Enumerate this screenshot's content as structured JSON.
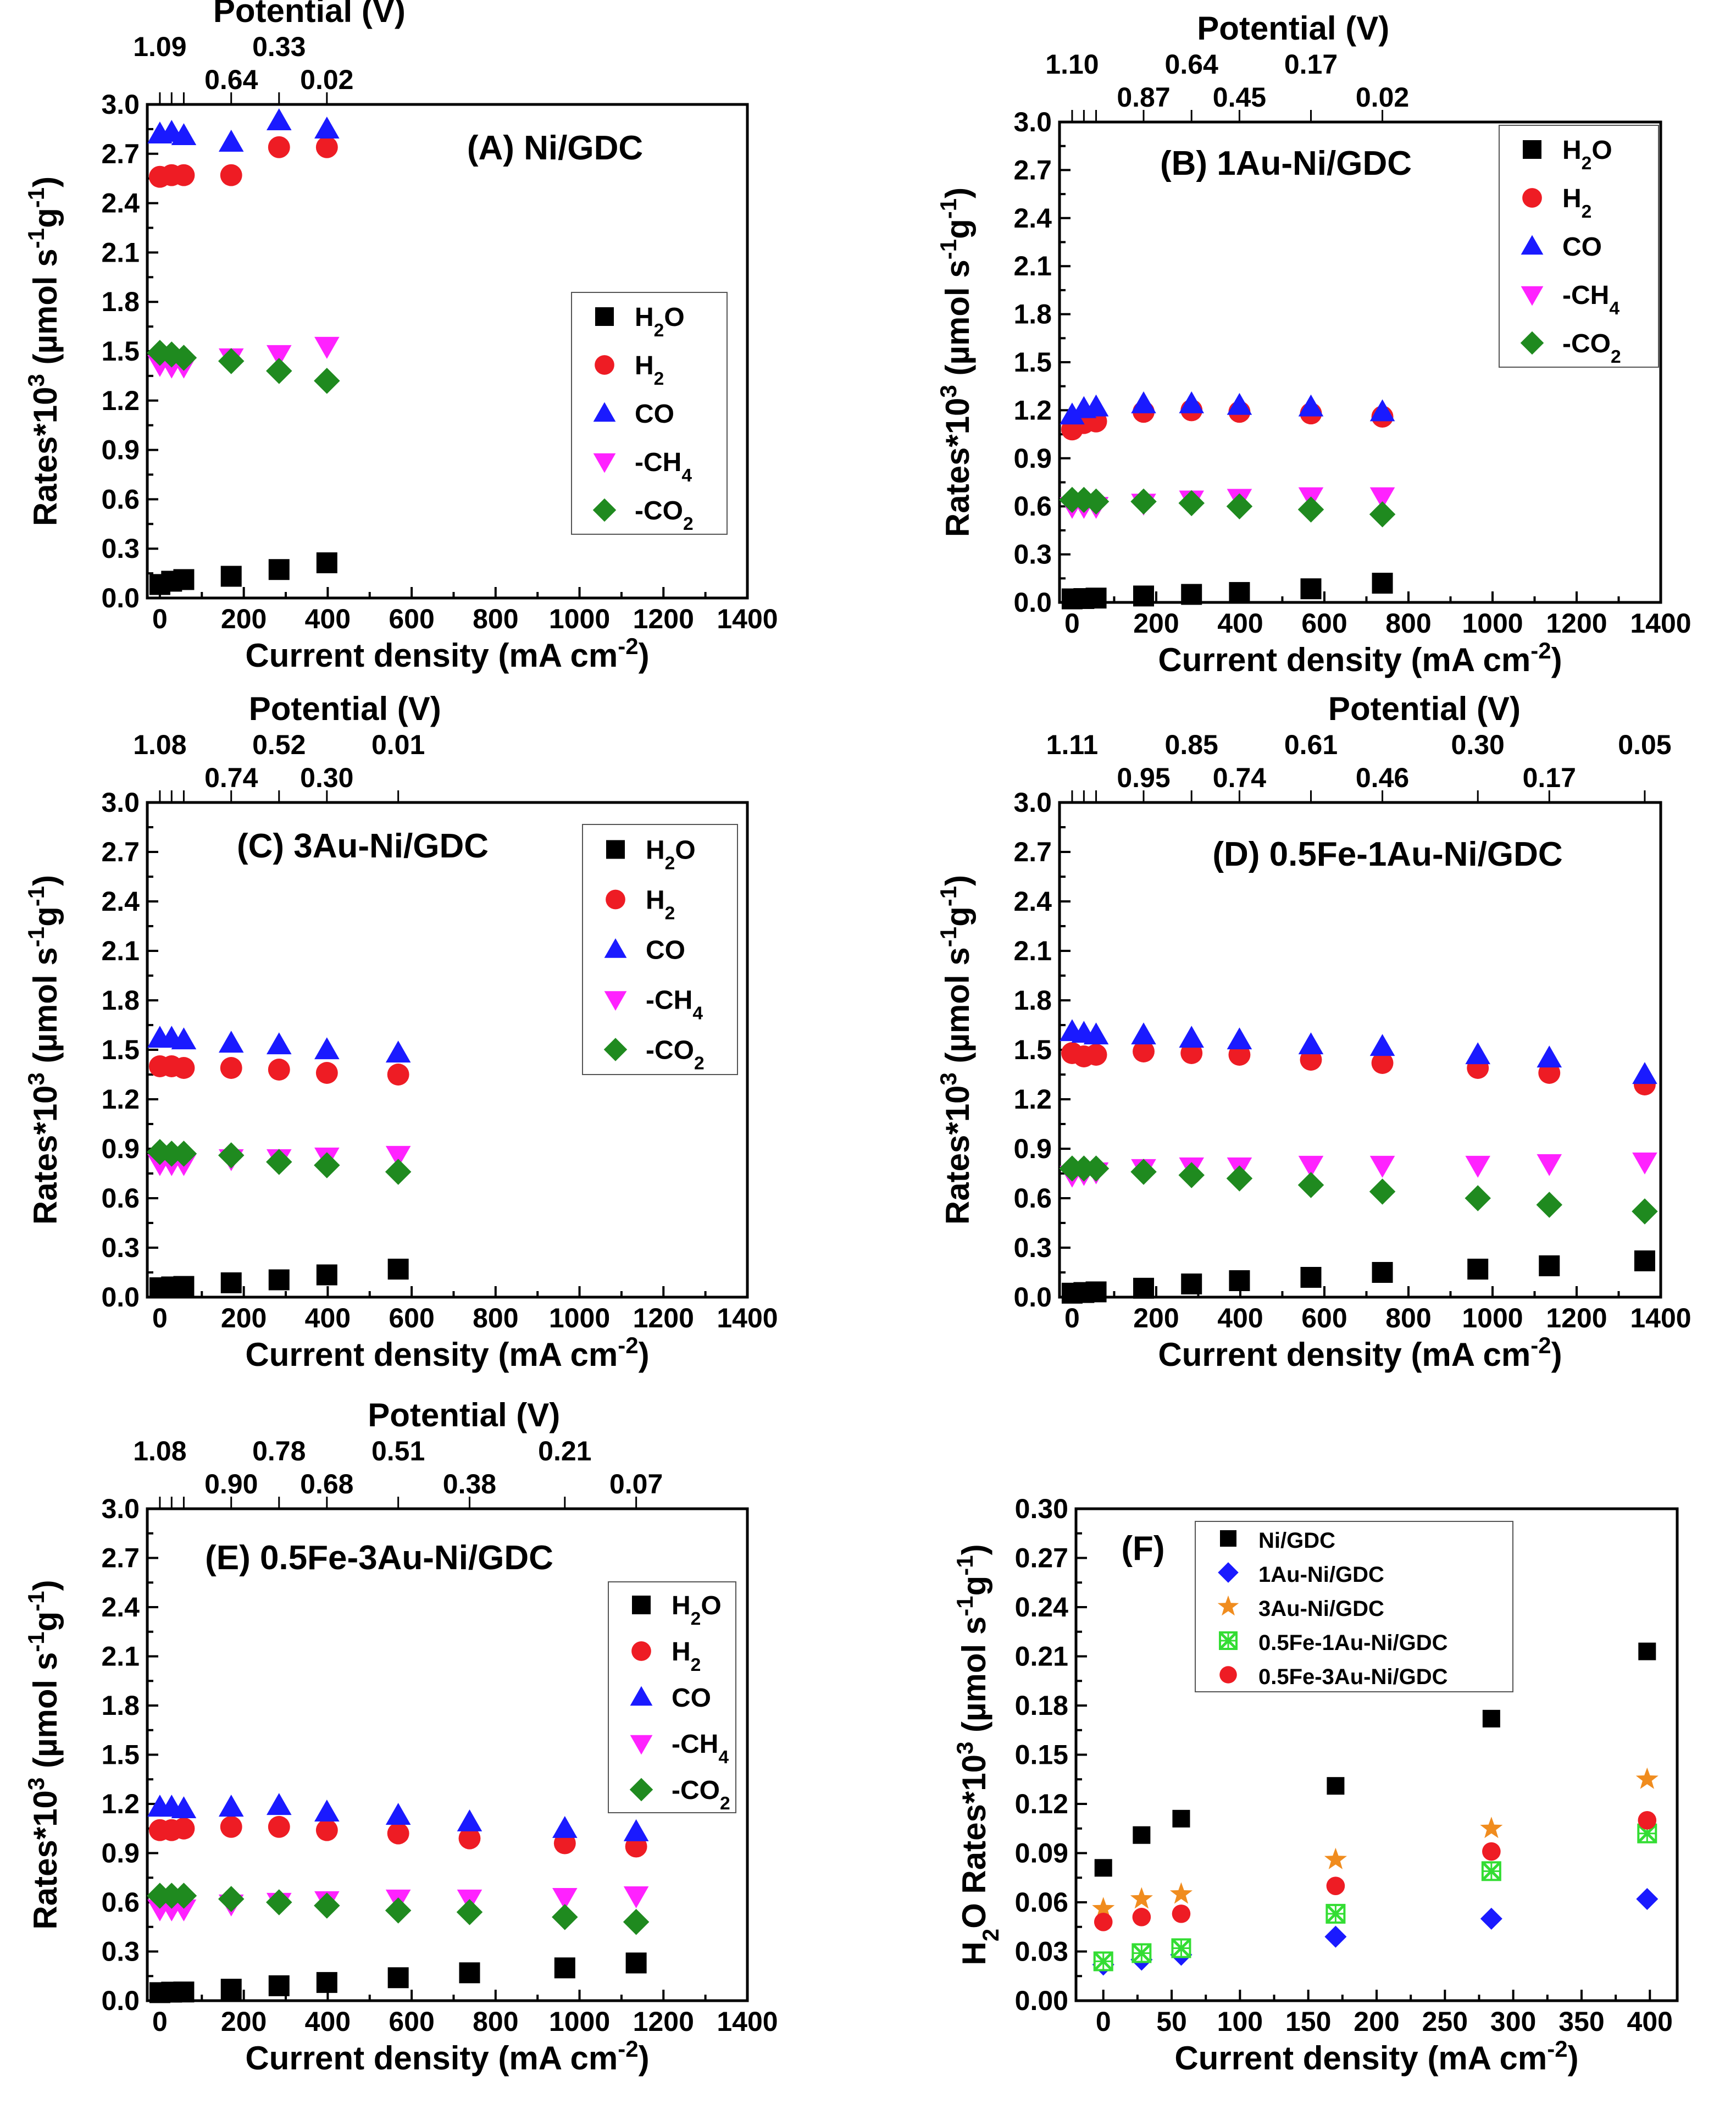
{
  "figure": {
    "top_axis_label": "Potential (V)",
    "x_axis_label": "Current density (mA cm",
    "x_axis_unit_exp": "-2",
    "x_axis_label_end": ")"
  },
  "chart_data": [
    {
      "id": "A",
      "type": "scatter",
      "title": "(A) Ni/GDC",
      "xlabel": "Current density (mA cm-2)",
      "ylabel": "Rates*10^3 (µmol s-1 g-1)",
      "xlim": [
        -30,
        1400
      ],
      "ylim": [
        0,
        3.0
      ],
      "xticks": [
        0,
        200,
        400,
        600,
        800,
        1000,
        1200,
        1400
      ],
      "yticks": [
        0.0,
        0.3,
        0.6,
        0.9,
        1.2,
        1.5,
        1.8,
        2.1,
        2.4,
        2.7,
        3.0
      ],
      "top_axis_label": "Potential (V)",
      "top_ticks": [
        {
          "x": 0,
          "label": "1.09"
        },
        {
          "x": 28,
          "label": ""
        },
        {
          "x": 57,
          "label": ""
        },
        {
          "x": 170,
          "label": "0.64"
        },
        {
          "x": 284,
          "label": "0.33"
        },
        {
          "x": 398,
          "label": "0.02"
        }
      ],
      "x": [
        0,
        28,
        57,
        170,
        284,
        398
      ],
      "series": [
        {
          "name": "H2O",
          "values": [
            0.082,
            0.102,
            0.112,
            0.132,
            0.173,
            0.214
          ]
        },
        {
          "name": "H2",
          "values": [
            2.56,
            2.57,
            2.57,
            2.57,
            2.74,
            2.74
          ]
        },
        {
          "name": "CO",
          "values": [
            2.82,
            2.83,
            2.81,
            2.77,
            2.9,
            2.85
          ]
        },
        {
          "name": "-CH4",
          "values": [
            1.42,
            1.41,
            1.41,
            1.46,
            1.48,
            1.53
          ]
        },
        {
          "name": "-CO2",
          "values": [
            1.49,
            1.48,
            1.46,
            1.44,
            1.38,
            1.32
          ]
        }
      ],
      "legend": [
        "H2O",
        "H2",
        "CO",
        "-CH4",
        "-CO2"
      ]
    },
    {
      "id": "B",
      "type": "scatter",
      "title": "(B) 1Au-Ni/GDC",
      "xlabel": "Current density (mA cm-2)",
      "ylabel": "Rates*10^3 (µmol s-1 g-1)",
      "xlim": [
        -30,
        1400
      ],
      "ylim": [
        0,
        3.0
      ],
      "xticks": [
        0,
        200,
        400,
        600,
        800,
        1000,
        1200,
        1400
      ],
      "yticks": [
        0.0,
        0.3,
        0.6,
        0.9,
        1.2,
        1.5,
        1.8,
        2.1,
        2.4,
        2.7,
        3.0
      ],
      "top_axis_label": "Potential (V)",
      "top_ticks": [
        {
          "x": 0,
          "label": "1.10"
        },
        {
          "x": 28,
          "label": ""
        },
        {
          "x": 57,
          "label": ""
        },
        {
          "x": 170,
          "label": "0.87"
        },
        {
          "x": 284,
          "label": "0.64"
        },
        {
          "x": 398,
          "label": "0.45"
        },
        {
          "x": 568,
          "label": "0.17"
        },
        {
          "x": 738,
          "label": "0.02"
        }
      ],
      "x": [
        0,
        28,
        57,
        170,
        284,
        398,
        568,
        738
      ],
      "series": [
        {
          "name": "H2O",
          "values": [
            0.022,
            0.024,
            0.027,
            0.04,
            0.05,
            0.062,
            0.085,
            0.12
          ]
        },
        {
          "name": "H2",
          "values": [
            1.08,
            1.12,
            1.13,
            1.19,
            1.2,
            1.19,
            1.18,
            1.16
          ]
        },
        {
          "name": "CO",
          "values": [
            1.17,
            1.21,
            1.22,
            1.24,
            1.24,
            1.23,
            1.22,
            1.19
          ]
        },
        {
          "name": "-CH4",
          "values": [
            0.6,
            0.6,
            0.6,
            0.62,
            0.64,
            0.65,
            0.66,
            0.66
          ]
        },
        {
          "name": "-CO2",
          "values": [
            0.64,
            0.64,
            0.63,
            0.63,
            0.62,
            0.6,
            0.58,
            0.55
          ]
        }
      ],
      "legend": [
        "H2O",
        "H2",
        "CO",
        "-CH4",
        "-CO2"
      ]
    },
    {
      "id": "C",
      "type": "scatter",
      "title": "(C) 3Au-Ni/GDC",
      "xlabel": "Current density (mA cm-2)",
      "ylabel": "Rates*10^3 (µmol s-1 g-1)",
      "xlim": [
        -30,
        1400
      ],
      "ylim": [
        0,
        3.0
      ],
      "xticks": [
        0,
        200,
        400,
        600,
        800,
        1000,
        1200,
        1400
      ],
      "yticks": [
        0.0,
        0.3,
        0.6,
        0.9,
        1.2,
        1.5,
        1.8,
        2.1,
        2.4,
        2.7,
        3.0
      ],
      "top_axis_label": "Potential (V)",
      "top_ticks": [
        {
          "x": 0,
          "label": "1.08"
        },
        {
          "x": 28,
          "label": ""
        },
        {
          "x": 57,
          "label": ""
        },
        {
          "x": 170,
          "label": "0.74"
        },
        {
          "x": 284,
          "label": "0.52"
        },
        {
          "x": 398,
          "label": "0.30"
        },
        {
          "x": 568,
          "label": "0.01"
        }
      ],
      "x": [
        0,
        28,
        57,
        170,
        284,
        398,
        568
      ],
      "series": [
        {
          "name": "H2O",
          "values": [
            0.057,
            0.062,
            0.065,
            0.087,
            0.105,
            0.135,
            0.17
          ]
        },
        {
          "name": "H2",
          "values": [
            1.4,
            1.4,
            1.39,
            1.39,
            1.38,
            1.36,
            1.35
          ]
        },
        {
          "name": "CO",
          "values": [
            1.57,
            1.57,
            1.56,
            1.54,
            1.53,
            1.5,
            1.48
          ]
        },
        {
          "name": "-CH4",
          "values": [
            0.81,
            0.81,
            0.81,
            0.84,
            0.84,
            0.85,
            0.86
          ]
        },
        {
          "name": "-CO2",
          "values": [
            0.88,
            0.87,
            0.87,
            0.86,
            0.82,
            0.8,
            0.76
          ]
        }
      ],
      "legend": [
        "H2O",
        "H2",
        "CO",
        "-CH4",
        "-CO2"
      ]
    },
    {
      "id": "D",
      "type": "scatter",
      "title": "(D) 0.5Fe-1Au-Ni/GDC",
      "xlabel": "Current density (mA cm-2)",
      "ylabel": "Rates*10^3 (µmol s-1 g-1)",
      "xlim": [
        -30,
        1400
      ],
      "ylim": [
        0,
        3.0
      ],
      "xticks": [
        0,
        200,
        400,
        600,
        800,
        1000,
        1200,
        1400
      ],
      "yticks": [
        0.0,
        0.3,
        0.6,
        0.9,
        1.2,
        1.5,
        1.8,
        2.1,
        2.4,
        2.7,
        3.0
      ],
      "top_axis_label": "Potential (V)",
      "top_ticks": [
        {
          "x": 0,
          "label": "1.11"
        },
        {
          "x": 28,
          "label": ""
        },
        {
          "x": 57,
          "label": ""
        },
        {
          "x": 170,
          "label": "0.95"
        },
        {
          "x": 284,
          "label": "0.85"
        },
        {
          "x": 398,
          "label": "0.74"
        },
        {
          "x": 568,
          "label": "0.61"
        },
        {
          "x": 738,
          "label": "0.46"
        },
        {
          "x": 965,
          "label": "0.30"
        },
        {
          "x": 1135,
          "label": "0.17"
        },
        {
          "x": 1362,
          "label": "0.05"
        }
      ],
      "x": [
        0,
        28,
        57,
        170,
        284,
        398,
        568,
        738,
        965,
        1135,
        1362
      ],
      "series": [
        {
          "name": "H2O",
          "values": [
            0.024,
            0.028,
            0.032,
            0.054,
            0.08,
            0.1,
            0.12,
            0.15,
            0.17,
            0.19,
            0.22
          ]
        },
        {
          "name": "H2",
          "values": [
            1.48,
            1.46,
            1.47,
            1.49,
            1.48,
            1.47,
            1.44,
            1.42,
            1.39,
            1.36,
            1.29
          ]
        },
        {
          "name": "CO",
          "values": [
            1.61,
            1.6,
            1.59,
            1.59,
            1.57,
            1.56,
            1.53,
            1.52,
            1.47,
            1.45,
            1.35
          ]
        },
        {
          "name": "-CH4",
          "values": [
            0.74,
            0.75,
            0.76,
            0.78,
            0.79,
            0.79,
            0.8,
            0.8,
            0.8,
            0.81,
            0.82
          ]
        },
        {
          "name": "-CO2",
          "values": [
            0.78,
            0.78,
            0.78,
            0.76,
            0.74,
            0.72,
            0.68,
            0.64,
            0.6,
            0.56,
            0.52
          ]
        }
      ],
      "legend": []
    },
    {
      "id": "E",
      "type": "scatter",
      "title": "(E) 0.5Fe-3Au-Ni/GDC",
      "xlabel": "Current density (mA cm-2)",
      "ylabel": "Rates*10^3 (µmol s-1 g-1)",
      "xlim": [
        -30,
        1400
      ],
      "ylim": [
        0,
        3.0
      ],
      "xticks": [
        0,
        200,
        400,
        600,
        800,
        1000,
        1200,
        1400
      ],
      "yticks": [
        0.0,
        0.3,
        0.6,
        0.9,
        1.2,
        1.5,
        1.8,
        2.1,
        2.4,
        2.7,
        3.0
      ],
      "top_axis_label": "Potential (V)",
      "top_ticks": [
        {
          "x": 0,
          "label": "1.08"
        },
        {
          "x": 28,
          "label": ""
        },
        {
          "x": 57,
          "label": ""
        },
        {
          "x": 170,
          "label": "0.90"
        },
        {
          "x": 284,
          "label": "0.78"
        },
        {
          "x": 398,
          "label": "0.68"
        },
        {
          "x": 568,
          "label": "0.51"
        },
        {
          "x": 738,
          "label": "0.38"
        },
        {
          "x": 965,
          "label": "0.21"
        },
        {
          "x": 1135,
          "label": "0.07"
        }
      ],
      "x": [
        0,
        28,
        57,
        170,
        284,
        398,
        568,
        738,
        965,
        1135
      ],
      "series": [
        {
          "name": "H2O",
          "values": [
            0.049,
            0.052,
            0.053,
            0.07,
            0.091,
            0.111,
            0.14,
            0.17,
            0.2,
            0.23
          ]
        },
        {
          "name": "H2",
          "values": [
            1.04,
            1.04,
            1.05,
            1.06,
            1.06,
            1.04,
            1.02,
            0.99,
            0.96,
            0.94
          ]
        },
        {
          "name": "CO",
          "values": [
            1.18,
            1.18,
            1.17,
            1.18,
            1.19,
            1.15,
            1.13,
            1.09,
            1.05,
            1.03
          ]
        },
        {
          "name": "-CH4",
          "values": [
            0.56,
            0.56,
            0.56,
            0.59,
            0.6,
            0.61,
            0.62,
            0.62,
            0.63,
            0.64
          ]
        },
        {
          "name": "-CO2",
          "values": [
            0.64,
            0.64,
            0.64,
            0.62,
            0.6,
            0.58,
            0.55,
            0.54,
            0.51,
            0.48
          ]
        }
      ],
      "legend": [
        "H2O",
        "H2",
        "CO",
        "-CH4",
        "-CO2"
      ]
    },
    {
      "id": "F",
      "type": "scatter",
      "title": "(F)",
      "xlabel": "Current density (mA cm-2)",
      "ylabel": "H2O Rates*10^3 (µmol s-1 g-1)",
      "xlim": [
        -20,
        420
      ],
      "ylim": [
        0,
        0.3
      ],
      "xticks": [
        0,
        50,
        100,
        150,
        200,
        250,
        300,
        350,
        400
      ],
      "yticks": [
        0.0,
        0.03,
        0.06,
        0.09,
        0.12,
        0.15,
        0.18,
        0.21,
        0.24,
        0.27,
        0.3
      ],
      "x": [
        0,
        28,
        57,
        170,
        284,
        398
      ],
      "series": [
        {
          "name": "Ni/GDC",
          "values": [
            0.081,
            0.101,
            0.111,
            0.131,
            0.172,
            0.213
          ]
        },
        {
          "name": "1Au-Ni/GDC",
          "values": [
            0.022,
            0.025,
            0.028,
            0.039,
            0.05,
            0.062
          ]
        },
        {
          "name": "3Au-Ni/GDC",
          "values": [
            0.056,
            0.062,
            0.065,
            0.086,
            0.105,
            0.135
          ]
        },
        {
          "name": "0.5Fe-1Au-Ni/GDC",
          "values": [
            0.024,
            0.029,
            0.032,
            0.053,
            0.079,
            0.102
          ]
        },
        {
          "name": "0.5Fe-3Au-Ni/GDC",
          "values": [
            0.048,
            0.051,
            0.053,
            0.07,
            0.091,
            0.11
          ]
        }
      ],
      "legend": [
        "Ni/GDC",
        "1Au-Ni/GDC",
        "3Au-Ni/GDC",
        "0.5Fe-1Au-Ni/GDC",
        "0.5Fe-3Au-Ni/GDC"
      ]
    }
  ],
  "colors": {
    "H2O": "#000000",
    "H2": "#ee1c24",
    "CO": "#1a1aff",
    "-CH4": "#ff22ff",
    "-CO2": "#1f8a1f",
    "Ni/GDC": "#000000",
    "1Au-Ni/GDC": "#1a1aff",
    "3Au-Ni/GDC": "#f08c1e",
    "0.5Fe-1Au-Ni/GDC": "#33dd33",
    "0.5Fe-3Au-Ni/GDC": "#ee1c24"
  },
  "markers": {
    "H2O": "square",
    "H2": "circle",
    "CO": "triangle-up",
    "-CH4": "triangle-down",
    "-CO2": "diamond",
    "Ni/GDC": "square",
    "1Au-Ni/GDC": "diamond",
    "3Au-Ni/GDC": "star",
    "0.5Fe-1Au-Ni/GDC": "hatched-square",
    "0.5Fe-3Au-Ni/GDC": "circle"
  }
}
